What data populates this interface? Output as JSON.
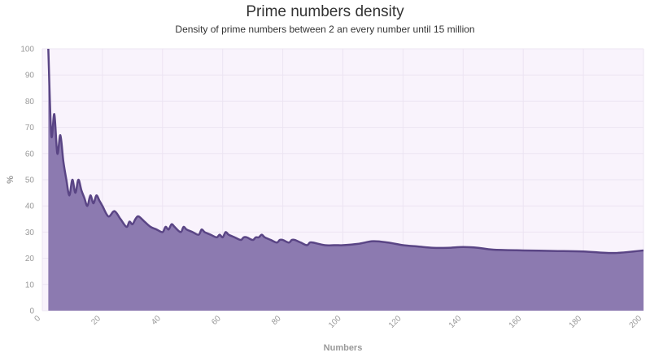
{
  "chart_data": {
    "type": "area",
    "title": "Prime numbers density",
    "subtitle": "Density of prime numbers between 2 an every number until 15 million",
    "xlabel": "Numbers",
    "ylabel": "%",
    "xlim": [
      0,
      200
    ],
    "ylim": [
      0,
      100
    ],
    "x_ticks": [
      0,
      20,
      40,
      60,
      80,
      100,
      120,
      140,
      160,
      180,
      200
    ],
    "y_ticks": [
      0,
      10,
      20,
      30,
      40,
      50,
      60,
      70,
      80,
      90,
      100
    ],
    "grid": true,
    "colors": {
      "plot_background": "#f9f3fc",
      "area_fill": "#8c7ab0",
      "line": "#5a4585",
      "grid": "#ece4f2",
      "axis_text": "#999999"
    },
    "series": [
      {
        "x": [
          2,
          3,
          4,
          5,
          6,
          7,
          8,
          9,
          10,
          11,
          12,
          13,
          14,
          15,
          16,
          17,
          18,
          19,
          20,
          22,
          24,
          26,
          28,
          29,
          30,
          31,
          32,
          34,
          36,
          38,
          40,
          41,
          42,
          43,
          44,
          46,
          47,
          48,
          50,
          52,
          53,
          54,
          56,
          58,
          59,
          60,
          61,
          62,
          64,
          66,
          67,
          68,
          70,
          71,
          72,
          73,
          74,
          76,
          78,
          79,
          80,
          82,
          83,
          84,
          86,
          88,
          89,
          90,
          94,
          97,
          98,
          100,
          105,
          110,
          115,
          120,
          125,
          130,
          135,
          140,
          145,
          150,
          160,
          170,
          180,
          190,
          200
        ],
        "values": [
          100,
          67,
          75,
          60,
          67,
          57,
          50,
          44,
          50,
          45,
          50,
          46,
          43,
          40,
          44,
          41,
          44,
          42,
          40,
          36,
          38,
          35,
          32,
          34,
          33,
          35,
          36,
          34,
          32,
          31,
          30,
          32,
          31,
          33,
          32,
          30,
          32,
          31,
          30,
          29,
          31,
          30,
          29,
          28,
          29,
          28,
          30,
          29,
          28,
          27,
          28,
          28,
          27,
          28,
          28,
          29,
          28,
          27,
          26,
          27,
          27,
          26,
          27,
          27,
          26,
          25,
          26,
          26,
          25,
          25,
          25,
          25,
          25.5,
          26.5,
          26,
          25,
          24.5,
          24,
          24,
          24.3,
          24,
          23.3,
          23,
          22.8,
          22.6,
          22,
          23
        ]
      }
    ]
  }
}
